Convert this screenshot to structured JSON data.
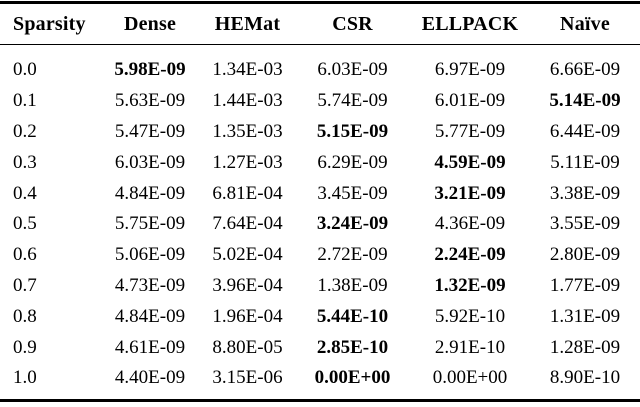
{
  "page": {
    "background": "#ffffff",
    "text_color": "#000000",
    "rule_color": "#000000"
  },
  "table": {
    "columns": [
      {
        "key": "sparsity",
        "label": "Sparsity"
      },
      {
        "key": "dense",
        "label": "Dense"
      },
      {
        "key": "hemat",
        "label": "HEMat"
      },
      {
        "key": "csr",
        "label": "CSR"
      },
      {
        "key": "ellpack",
        "label": "ELLPACK"
      },
      {
        "key": "naive",
        "label": "Naïve"
      }
    ],
    "rows": [
      {
        "sparsity": "0.0",
        "values": [
          "5.98E-09",
          "1.34E-03",
          "6.03E-09",
          "6.97E-09",
          "6.66E-09"
        ],
        "bold_value_index": 0
      },
      {
        "sparsity": "0.1",
        "values": [
          "5.63E-09",
          "1.44E-03",
          "5.74E-09",
          "6.01E-09",
          "5.14E-09"
        ],
        "bold_value_index": 4
      },
      {
        "sparsity": "0.2",
        "values": [
          "5.47E-09",
          "1.35E-03",
          "5.15E-09",
          "5.77E-09",
          "6.44E-09"
        ],
        "bold_value_index": 2
      },
      {
        "sparsity": "0.3",
        "values": [
          "6.03E-09",
          "1.27E-03",
          "6.29E-09",
          "4.59E-09",
          "5.11E-09"
        ],
        "bold_value_index": 3
      },
      {
        "sparsity": "0.4",
        "values": [
          "4.84E-09",
          "6.81E-04",
          "3.45E-09",
          "3.21E-09",
          "3.38E-09"
        ],
        "bold_value_index": 3
      },
      {
        "sparsity": "0.5",
        "values": [
          "5.75E-09",
          "7.64E-04",
          "3.24E-09",
          "4.36E-09",
          "3.55E-09"
        ],
        "bold_value_index": 2
      },
      {
        "sparsity": "0.6",
        "values": [
          "5.06E-09",
          "5.02E-04",
          "2.72E-09",
          "2.24E-09",
          "2.80E-09"
        ],
        "bold_value_index": 3
      },
      {
        "sparsity": "0.7",
        "values": [
          "4.73E-09",
          "3.96E-04",
          "1.38E-09",
          "1.32E-09",
          "1.77E-09"
        ],
        "bold_value_index": 3
      },
      {
        "sparsity": "0.8",
        "values": [
          "4.84E-09",
          "1.96E-04",
          "5.44E-10",
          "5.92E-10",
          "1.31E-09"
        ],
        "bold_value_index": 2
      },
      {
        "sparsity": "0.9",
        "values": [
          "4.61E-09",
          "8.80E-05",
          "2.85E-10",
          "2.91E-10",
          "1.28E-09"
        ],
        "bold_value_index": 2
      },
      {
        "sparsity": "1.0",
        "values": [
          "4.40E-09",
          "3.15E-06",
          "0.00E+00",
          "0.00E+00",
          "8.90E-10"
        ],
        "bold_value_index": 2
      }
    ]
  }
}
